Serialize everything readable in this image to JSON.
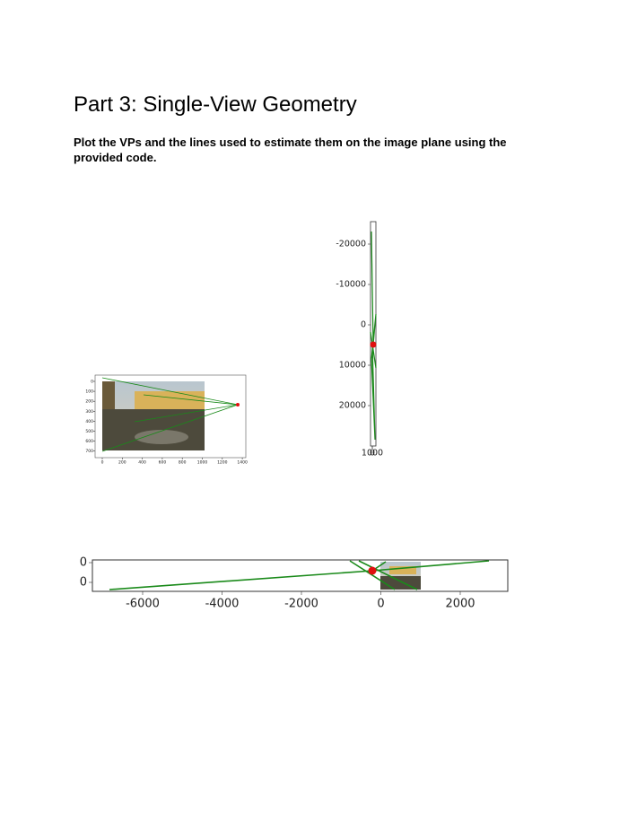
{
  "header": {
    "title": "Part 3: Single-View Geometry"
  },
  "body": {
    "text": "Plot the VPs and the lines used to estimate them on the image plane using the provided code."
  },
  "figures": [
    {
      "y_ticks": [
        0,
        100,
        200,
        300,
        400,
        500,
        600,
        700
      ],
      "x_ticks": [
        0,
        200,
        400,
        600,
        800,
        1000,
        1200,
        1400
      ]
    },
    {
      "y_ticks": [
        -20000,
        -10000,
        0,
        10000,
        20000
      ],
      "x_ticks": [
        0,
        1000
      ]
    },
    {
      "y_ticks": [
        0,
        0
      ],
      "x_ticks": [
        -6000,
        -4000,
        -2000,
        0,
        2000
      ]
    }
  ]
}
